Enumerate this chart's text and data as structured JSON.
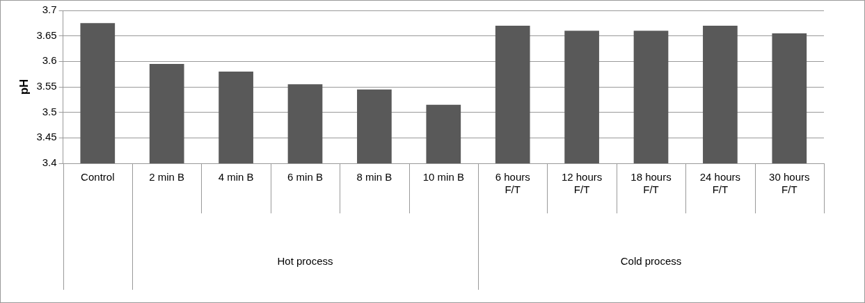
{
  "chart_data": {
    "type": "bar",
    "ylabel": "pH",
    "categories": [
      "Control",
      "2 min B",
      "4 min B",
      "6 min B",
      "8 min B",
      "10 min B",
      "6 hours F/T",
      "12 hours F/T",
      "18 hours F/T",
      "24 hours F/T",
      "30 hours F/T"
    ],
    "values": [
      3.675,
      3.595,
      3.58,
      3.555,
      3.545,
      3.515,
      3.67,
      3.66,
      3.66,
      3.67,
      3.655
    ],
    "color": "#595959",
    "ylim": [
      3.4,
      3.7
    ],
    "yticks": [
      3.4,
      3.45,
      3.5,
      3.55,
      3.6,
      3.65,
      3.7
    ],
    "grid": "y",
    "legend": false,
    "annotations": [
      "Hot process",
      "Cold process"
    ]
  }
}
